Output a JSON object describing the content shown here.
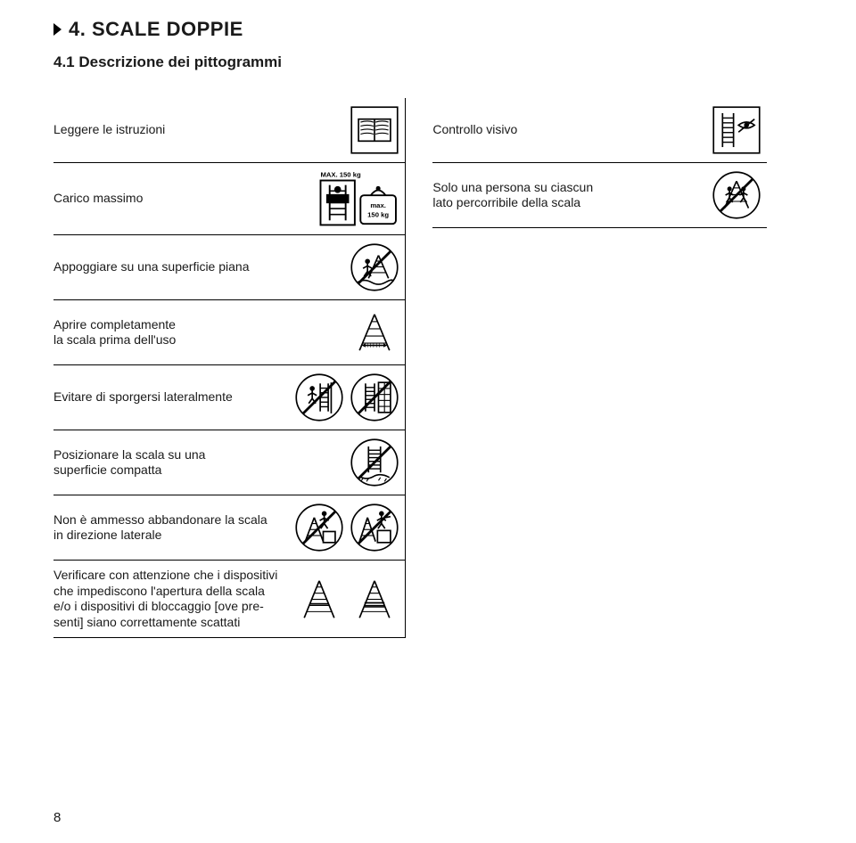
{
  "heading": "4. SCALE DOPPIE",
  "subheading": "4.1 Descrizione dei pittogrammi",
  "page_number": "8",
  "left_rows": [
    {
      "label": "Leggere le istruzioni",
      "icons": [
        "book"
      ]
    },
    {
      "label": "Carico massimo",
      "icons": [
        "maxload"
      ]
    },
    {
      "label": "Appoggiare su una superficie piana",
      "icons": [
        "unevenground"
      ]
    },
    {
      "label": "Aprire completamente\nla scala prima dell'uso",
      "icons": [
        "aframe-open"
      ]
    },
    {
      "label": "Evitare di sporgersi lateralmente",
      "icons": [
        "leaning",
        "ladder-wall"
      ]
    },
    {
      "label": "Posizionare la scala su una\nsuperficie compatta",
      "icons": [
        "ladder-softground"
      ]
    },
    {
      "label": "Non è ammesso abbandonare la scala\nin direzione laterale",
      "icons": [
        "stepoff1",
        "stepoff2"
      ]
    },
    {
      "label": "Verificare con attenzione che i dispositivi\nche impediscono l'apertura della scala\ne/o i dispositivi di bloccaggio [ove pre-\nsenti] siano correttamente scattati",
      "icons": [
        "aframe-lock1",
        "aframe-lock2"
      ]
    }
  ],
  "right_rows": [
    {
      "label": "Controllo visivo",
      "icons": [
        "ladder-eye"
      ]
    },
    {
      "label": "Solo una persona su ciascun\nlato percorribile della scala",
      "icons": [
        "twopersons"
      ]
    }
  ],
  "colors": {
    "text": "#1a1a1a",
    "rule": "#000000",
    "bg": "#ffffff"
  },
  "pictogram_labels": {
    "max_top": "MAX. 150 kg",
    "max_inner": "max.",
    "max_weight": "150 kg"
  }
}
